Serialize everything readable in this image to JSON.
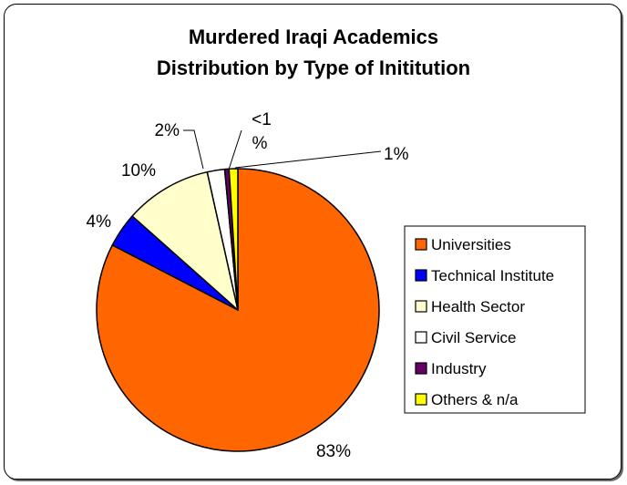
{
  "chart_data": {
    "type": "pie",
    "title_lines": [
      "Murdered Iraqi Academics",
      "Distribution by Type of Inititution"
    ],
    "categories": [
      "Universities",
      "Technical Institute",
      "Health Sector",
      "Civil Service",
      "Industry",
      "Others & n/a"
    ],
    "values": [
      83,
      4,
      10,
      2,
      0.5,
      1
    ],
    "labels": [
      "83%",
      "4%",
      "10%",
      "2%",
      "<1 %",
      "1%"
    ],
    "colors": [
      "#ff6600",
      "#0000ff",
      "#ffffcc",
      "#ffffff",
      "#660066",
      "#ffff00"
    ],
    "legend_position": "right"
  }
}
